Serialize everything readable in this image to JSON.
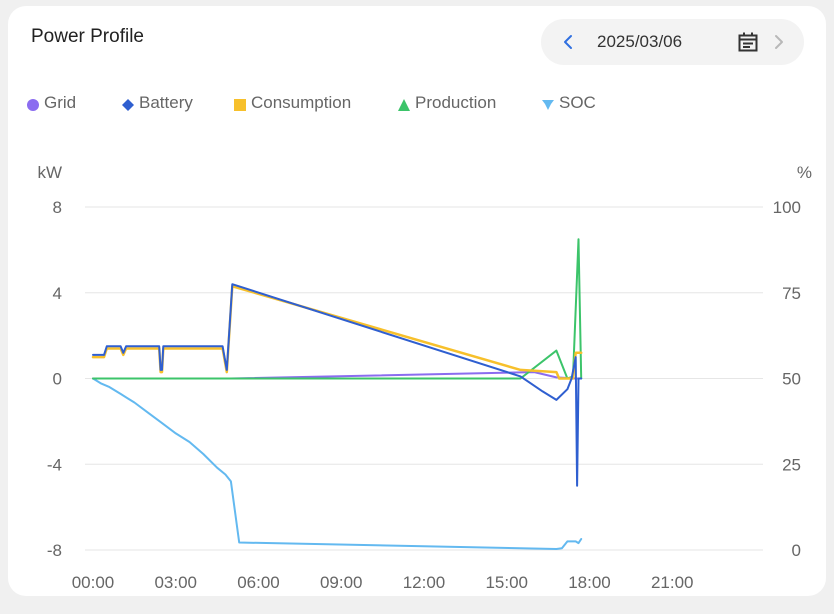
{
  "card": {
    "title": "Power Profile"
  },
  "date_picker": {
    "value": "2025/03/06",
    "prev_icon": "chevron-left-icon",
    "calendar_icon": "calendar-icon",
    "next_icon": "chevron-right-icon"
  },
  "colors": {
    "grid": "#8b6cf0",
    "battery": "#2f5fd0",
    "consumption": "#f7c02b",
    "production": "#3cc46a",
    "soc": "#63b9f0",
    "accent": "#2f6fe0"
  },
  "chart_data": {
    "type": "line",
    "title": "",
    "y_left_label": "kW",
    "y_right_label": "%",
    "y_left_range": [
      -8,
      8
    ],
    "y_left_ticks": [
      "8",
      "4",
      "0",
      "-4",
      "-8"
    ],
    "y_right_range": [
      0,
      100
    ],
    "y_right_ticks": [
      "100",
      "75",
      "50",
      "25",
      "0"
    ],
    "x_ticks": [
      "00:00",
      "03:00",
      "06:00",
      "09:00",
      "12:00",
      "15:00",
      "18:00",
      "21:00"
    ],
    "x_range_hours": [
      0,
      24
    ],
    "grid": true,
    "legend_position": "top-left",
    "series": [
      {
        "name": "Grid",
        "key": "grid",
        "axis": "left",
        "marker": "circle",
        "points": [
          [
            0,
            0
          ],
          [
            5,
            0
          ],
          [
            16,
            0.3
          ],
          [
            16.8,
            0.05
          ],
          [
            17.5,
            0
          ],
          [
            17.7,
            0
          ]
        ]
      },
      {
        "name": "Battery",
        "key": "battery",
        "axis": "left",
        "marker": "diamond",
        "points": [
          [
            0,
            1.1
          ],
          [
            0.4,
            1.1
          ],
          [
            0.5,
            1.5
          ],
          [
            1.0,
            1.5
          ],
          [
            1.1,
            1.2
          ],
          [
            1.2,
            1.5
          ],
          [
            2.3,
            1.5
          ],
          [
            2.4,
            1.5
          ],
          [
            2.45,
            0.4
          ],
          [
            2.5,
            0.4
          ],
          [
            2.55,
            1.5
          ],
          [
            4.7,
            1.5
          ],
          [
            4.85,
            0.4
          ],
          [
            5.05,
            4.4
          ],
          [
            15.5,
            0.1
          ],
          [
            16.3,
            -0.6
          ],
          [
            16.8,
            -1.0
          ],
          [
            17.2,
            -0.5
          ],
          [
            17.35,
            0
          ],
          [
            17.5,
            1.0
          ],
          [
            17.55,
            -5.0
          ],
          [
            17.6,
            0
          ],
          [
            17.7,
            0
          ]
        ]
      },
      {
        "name": "Consumption",
        "key": "consumption",
        "axis": "left",
        "marker": "square",
        "points": [
          [
            0,
            1.0
          ],
          [
            0.4,
            1.0
          ],
          [
            0.5,
            1.4
          ],
          [
            1.0,
            1.4
          ],
          [
            1.1,
            1.1
          ],
          [
            1.2,
            1.4
          ],
          [
            2.3,
            1.4
          ],
          [
            2.4,
            1.4
          ],
          [
            2.45,
            0.3
          ],
          [
            2.5,
            0.3
          ],
          [
            2.55,
            1.4
          ],
          [
            4.7,
            1.4
          ],
          [
            4.85,
            0.3
          ],
          [
            5.05,
            4.3
          ],
          [
            15.5,
            0.4
          ],
          [
            16.8,
            0.3
          ],
          [
            16.9,
            0
          ],
          [
            17.4,
            0
          ],
          [
            17.5,
            1.2
          ],
          [
            17.7,
            1.2
          ]
        ]
      },
      {
        "name": "Production",
        "key": "production",
        "axis": "left",
        "marker": "triangle",
        "points": [
          [
            0,
            0
          ],
          [
            15.5,
            0
          ],
          [
            16.8,
            1.3
          ],
          [
            17.2,
            0
          ],
          [
            17.4,
            0.1
          ],
          [
            17.6,
            6.5
          ],
          [
            17.7,
            0
          ]
        ]
      },
      {
        "name": "SOC",
        "key": "soc",
        "axis": "right",
        "marker": "pin",
        "points": [
          [
            0,
            50
          ],
          [
            0.3,
            48.5
          ],
          [
            0.6,
            47.5
          ],
          [
            1.0,
            45.5
          ],
          [
            1.5,
            43
          ],
          [
            2.0,
            40
          ],
          [
            2.5,
            37
          ],
          [
            3.0,
            34
          ],
          [
            3.5,
            31.5
          ],
          [
            4.0,
            28
          ],
          [
            4.5,
            24
          ],
          [
            4.8,
            22
          ],
          [
            5.0,
            20
          ],
          [
            5.3,
            2.2
          ],
          [
            16.8,
            0.3
          ],
          [
            17.0,
            0.5
          ],
          [
            17.2,
            2.5
          ],
          [
            17.5,
            2.5
          ],
          [
            17.6,
            2.0
          ],
          [
            17.7,
            3.2
          ]
        ]
      }
    ]
  }
}
